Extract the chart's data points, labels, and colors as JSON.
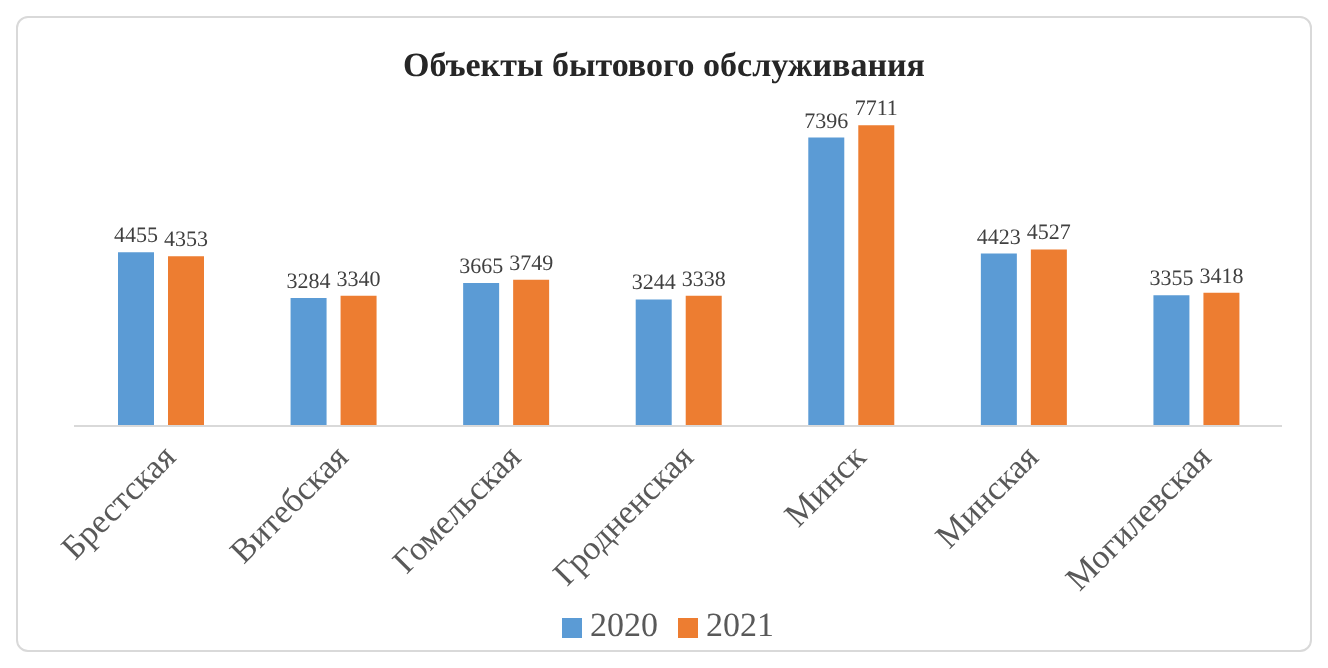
{
  "chart_data": {
    "type": "bar",
    "title": "Объекты бытового обслуживания",
    "categories": [
      "Брестская",
      "Витебская",
      "Гомельская",
      "Гродненская",
      "Минск",
      "Минская",
      "Могилевская"
    ],
    "series": [
      {
        "name": "2020",
        "color": "#5b9bd5",
        "values": [
          4455,
          3284,
          3665,
          3244,
          7396,
          4423,
          3355
        ]
      },
      {
        "name": "2021",
        "color": "#ed7d31",
        "values": [
          4353,
          3340,
          3749,
          3338,
          7711,
          4527,
          3418
        ]
      }
    ],
    "data_labels": true,
    "legend": "bottom",
    "grid": false
  }
}
